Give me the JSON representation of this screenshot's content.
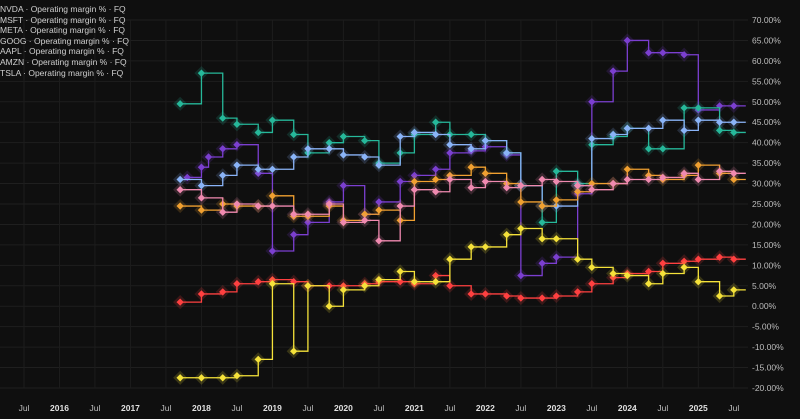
{
  "legend": [
    {
      "label": "NVDA · Operating margin % · FQ",
      "color": "#7b3fd0"
    },
    {
      "label": "MSFT · Operating margin % · FQ",
      "color": "#26b89a"
    },
    {
      "label": "META · Operating margin % · FQ",
      "color": "#8ab4f8"
    },
    {
      "label": "GOOG · Operating margin % · FQ",
      "color": "#f0a030"
    },
    {
      "label": "AAPL · Operating margin % · FQ",
      "color": "#f08ab0"
    },
    {
      "label": "AMZN · Operating margin % · FQ",
      "color": "#ff4040"
    },
    {
      "label": "TSLA · Operating margin % · FQ",
      "color": "#f5e23a"
    }
  ],
  "chart_data": {
    "type": "line",
    "title": "",
    "xlabel": "",
    "ylabel": "",
    "x_ticks": [
      "Jul",
      "2016",
      "Jul",
      "2017",
      "Jul",
      "2018",
      "Jul",
      "2019",
      "Jul",
      "2020",
      "Jul",
      "2021",
      "Jul",
      "2022",
      "Jul",
      "2023",
      "Jul",
      "2024",
      "Jul",
      "2025",
      "Jul"
    ],
    "x_range": [
      2015.5,
      2025.7
    ],
    "y_ticks": [
      "70.00%",
      "65.00%",
      "60.00%",
      "55.00%",
      "50.00%",
      "45.00%",
      "40.00%",
      "35.00%",
      "30.00%",
      "25.00%",
      "20.00%",
      "15.00%",
      "10.00%",
      "5.00%",
      "0.00%",
      "-5.00%",
      "-10.00%",
      "-15.00%",
      "-20.00%"
    ],
    "ylim": [
      -20,
      70
    ],
    "grid": true,
    "legend_position": "top-left",
    "series": [
      {
        "name": "NVDA · Operating margin % · FQ",
        "color": "#7b3fd0",
        "x": [
          2017.8,
          2018.0,
          2018.1,
          2018.3,
          2018.5,
          2018.8,
          2019.0,
          2019.3,
          2019.5,
          2019.8,
          2020.0,
          2020.3,
          2020.5,
          2020.8,
          2021.0,
          2021.3,
          2021.5,
          2021.8,
          2022.0,
          2022.3,
          2022.5,
          2022.8,
          2023.0,
          2023.3,
          2023.5,
          2023.8,
          2024.0,
          2024.3,
          2024.5,
          2024.8,
          2025.0,
          2025.3,
          2025.5
        ],
        "y": [
          31.5,
          34.0,
          36.5,
          38.5,
          39.5,
          32.5,
          13.5,
          17.5,
          20.5,
          25.5,
          29.5,
          22.5,
          25.5,
          30.5,
          32.0,
          33.5,
          37.5,
          38.0,
          39.0,
          37.0,
          7.5,
          10.5,
          12.0,
          27.5,
          50.0,
          57.5,
          65.0,
          62.0,
          62.0,
          61.5,
          48.0,
          49.0,
          49.0
        ]
      },
      {
        "name": "MSFT · Operating margin % · FQ",
        "color": "#26b89a",
        "x": [
          2017.7,
          2018.0,
          2018.3,
          2018.5,
          2018.8,
          2019.0,
          2019.3,
          2019.5,
          2019.8,
          2020.0,
          2020.3,
          2020.5,
          2020.8,
          2021.0,
          2021.3,
          2021.5,
          2021.8,
          2022.0,
          2022.3,
          2022.5,
          2022.8,
          2023.0,
          2023.3,
          2023.5,
          2023.8,
          2024.0,
          2024.3,
          2024.5,
          2024.8,
          2025.0,
          2025.3,
          2025.5
        ],
        "y": [
          49.5,
          57.0,
          46.0,
          44.5,
          42.5,
          45.5,
          42.0,
          37.5,
          40.0,
          41.5,
          40.5,
          35.0,
          37.5,
          42.0,
          45.0,
          42.0,
          42.0,
          40.5,
          37.5,
          29.5,
          20.5,
          33.0,
          30.0,
          39.5,
          41.5,
          43.5,
          38.5,
          38.5,
          48.5,
          48.5,
          43.0,
          42.5
        ]
      },
      {
        "name": "META · Operating margin % · FQ",
        "color": "#8ab4f8",
        "x": [
          2017.7,
          2018.0,
          2018.3,
          2018.5,
          2018.8,
          2019.0,
          2019.3,
          2019.5,
          2019.8,
          2020.0,
          2020.3,
          2020.5,
          2020.8,
          2021.0,
          2021.3,
          2021.5,
          2021.8,
          2022.0,
          2022.3,
          2022.5,
          2022.8,
          2023.0,
          2023.3,
          2023.5,
          2023.8,
          2024.0,
          2024.3,
          2024.5,
          2024.8,
          2025.0,
          2025.3,
          2025.5
        ],
        "y": [
          31.0,
          29.5,
          32.0,
          34.5,
          33.5,
          33.5,
          36.5,
          38.5,
          38.5,
          37.0,
          36.5,
          34.5,
          41.5,
          42.5,
          42.0,
          39.5,
          38.5,
          40.5,
          37.5,
          29.5,
          24.5,
          24.5,
          29.5,
          41.0,
          42.0,
          43.5,
          43.5,
          45.5,
          43.0,
          45.5,
          45.0,
          45.0
        ]
      },
      {
        "name": "GOOG · Operating margin % · FQ",
        "color": "#f0a030",
        "x": [
          2017.7,
          2018.0,
          2018.3,
          2018.5,
          2018.8,
          2019.0,
          2019.3,
          2019.5,
          2019.8,
          2020.0,
          2020.3,
          2020.5,
          2020.8,
          2021.0,
          2021.3,
          2021.5,
          2021.8,
          2022.0,
          2022.3,
          2022.5,
          2022.8,
          2023.0,
          2023.3,
          2023.5,
          2023.8,
          2024.0,
          2024.3,
          2024.5,
          2024.8,
          2025.0,
          2025.3,
          2025.5
        ],
        "y": [
          24.5,
          23.5,
          25.0,
          24.5,
          24.5,
          27.0,
          22.0,
          22.0,
          24.5,
          21.0,
          22.5,
          23.5,
          21.0,
          30.5,
          31.0,
          32.0,
          34.0,
          32.5,
          30.0,
          25.5,
          24.5,
          26.0,
          28.0,
          30.0,
          30.0,
          33.5,
          32.0,
          31.0,
          32.0,
          34.5,
          32.5,
          31.0
        ]
      },
      {
        "name": "AAPL · Operating margin % · FQ",
        "color": "#f08ab0",
        "x": [
          2017.7,
          2018.0,
          2018.3,
          2018.5,
          2018.8,
          2019.0,
          2019.3,
          2019.5,
          2019.8,
          2020.0,
          2020.3,
          2020.5,
          2020.8,
          2021.0,
          2021.3,
          2021.5,
          2021.8,
          2022.0,
          2022.3,
          2022.5,
          2022.8,
          2023.0,
          2023.3,
          2023.5,
          2023.8,
          2024.0,
          2024.3,
          2024.5,
          2024.8,
          2025.0,
          2025.3,
          2025.5
        ],
        "y": [
          28.5,
          26.5,
          23.0,
          25.0,
          24.5,
          24.5,
          22.5,
          22.5,
          25.0,
          20.5,
          21.0,
          16.0,
          24.5,
          28.5,
          28.0,
          31.0,
          29.0,
          30.5,
          29.0,
          29.5,
          31.0,
          30.5,
          29.5,
          28.5,
          30.0,
          31.0,
          31.0,
          31.5,
          32.5,
          31.0,
          33.0,
          32.5
        ]
      },
      {
        "name": "AMZN · Operating margin % · FQ",
        "color": "#ff4040",
        "x": [
          2017.7,
          2018.0,
          2018.3,
          2018.5,
          2018.8,
          2019.0,
          2019.3,
          2019.5,
          2019.8,
          2020.0,
          2020.3,
          2020.5,
          2020.8,
          2021.0,
          2021.3,
          2021.5,
          2021.8,
          2022.0,
          2022.3,
          2022.5,
          2022.8,
          2023.0,
          2023.3,
          2023.5,
          2023.8,
          2024.0,
          2024.3,
          2024.5,
          2024.8,
          2025.0,
          2025.3,
          2025.5
        ],
        "y": [
          1.0,
          3.0,
          3.5,
          5.5,
          6.0,
          6.5,
          6.0,
          5.0,
          5.0,
          5.0,
          5.5,
          6.0,
          6.0,
          5.5,
          7.5,
          5.0,
          3.0,
          3.0,
          2.5,
          2.0,
          2.0,
          2.5,
          3.5,
          5.5,
          7.0,
          8.0,
          8.5,
          10.5,
          11.0,
          11.5,
          12.0,
          11.5
        ]
      },
      {
        "name": "TSLA · Operating margin % · FQ",
        "color": "#f5e23a",
        "x": [
          2017.7,
          2018.0,
          2018.3,
          2018.5,
          2018.8,
          2019.0,
          2019.3,
          2019.5,
          2019.8,
          2020.0,
          2020.3,
          2020.5,
          2020.8,
          2021.0,
          2021.3,
          2021.5,
          2021.8,
          2022.0,
          2022.3,
          2022.5,
          2022.8,
          2023.0,
          2023.3,
          2023.5,
          2023.8,
          2024.0,
          2024.3,
          2024.5,
          2024.8,
          2025.0,
          2025.3,
          2025.5
        ],
        "y": [
          -17.5,
          -17.5,
          -17.5,
          -17.0,
          -13.0,
          5.5,
          -11.0,
          5.0,
          0.0,
          4.0,
          5.0,
          6.5,
          8.5,
          6.0,
          6.0,
          11.5,
          14.5,
          14.5,
          17.5,
          19.0,
          16.5,
          16.5,
          11.5,
          9.5,
          8.0,
          7.5,
          5.5,
          8.0,
          9.5,
          6.0,
          2.5,
          4.0
        ]
      }
    ]
  }
}
